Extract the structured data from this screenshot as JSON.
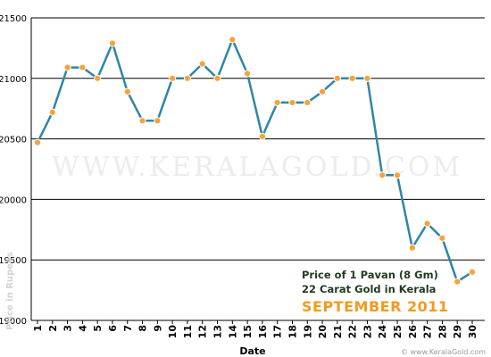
{
  "chart_data": {
    "type": "line",
    "x": [
      "1",
      "2",
      "3",
      "4",
      "5",
      "6",
      "7",
      "8",
      "9",
      "10",
      "11",
      "12",
      "13",
      "14",
      "15",
      "16",
      "17",
      "18",
      "19",
      "20",
      "21",
      "22",
      "23",
      "24",
      "25",
      "26",
      "27",
      "28",
      "29",
      "30"
    ],
    "values": [
      20470,
      20720,
      21090,
      21090,
      21000,
      21290,
      20890,
      20650,
      20650,
      21000,
      21000,
      21120,
      21000,
      21320,
      21040,
      20520,
      20800,
      20800,
      20800,
      20890,
      21000,
      21000,
      21000,
      20200,
      20200,
      19600,
      19800,
      19680,
      19320,
      19400
    ],
    "xlabel": "Date",
    "ylabel": "Price in Rupees",
    "ylim": [
      19000,
      21500
    ],
    "yticks": [
      19000,
      19500,
      20000,
      20500,
      21000,
      21500
    ],
    "grid": true,
    "annotations": {
      "line1": "Price of 1 Pavan (8 Gm)",
      "line2": "22 Carat Gold in Kerala",
      "line3": "SEPTEMBER 2011"
    },
    "watermark": "WWW.KERALAGOLD.COM",
    "footer": "© www.KeralaGold.com",
    "colors": {
      "line": "#2f86a6",
      "marker_fill": "#f7a23c",
      "marker_stroke": "#ffffff",
      "grid": "#000000",
      "annotation_text": "#1f3b1f",
      "month_text": "#f39a1e",
      "background": "#ffffff"
    }
  }
}
